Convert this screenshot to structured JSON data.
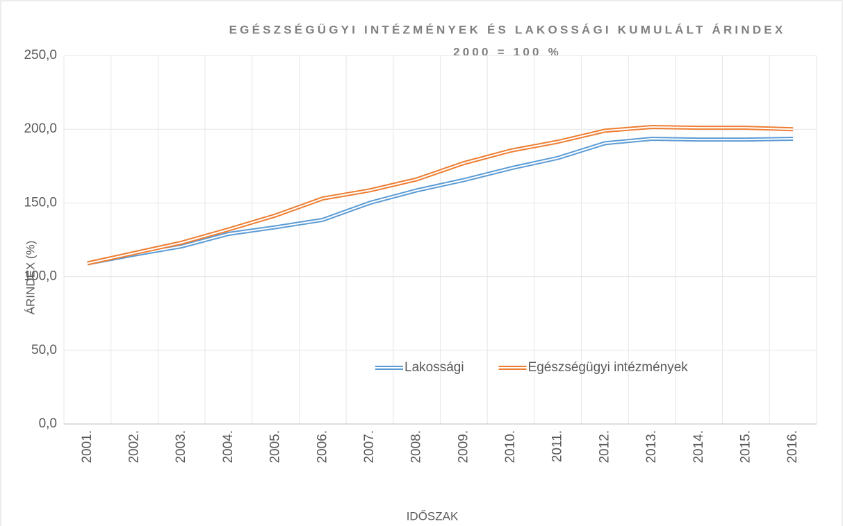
{
  "chart_data": {
    "type": "line",
    "title": "EGÉSZSÉGÜGYI INTÉZMÉNYEK ÉS LAKOSSÁGI KUMULÁLT ÁRINDEX",
    "subtitle": "2000 = 100 %",
    "x_label": "IDŐSZAK",
    "y_label": "ÁRINDEX (%)",
    "categories": [
      "2001.",
      "2002.",
      "2003.",
      "2004.",
      "2005.",
      "2006.",
      "2007.",
      "2008.",
      "2009.",
      "2010.",
      "2011.",
      "2012.",
      "2013.",
      "2014.",
      "2015.",
      "2016."
    ],
    "series": [
      {
        "name": "Lakossági",
        "color": "#5b9bd5",
        "values": [
          109,
          115,
          120.5,
          129,
          133.5,
          138.5,
          150,
          158.5,
          165.5,
          173.5,
          180.5,
          190.5,
          193.5,
          193,
          193,
          193.5
        ]
      },
      {
        "name": "Egészségügyi intézmények",
        "color": "#ed7d31",
        "values": [
          109,
          116,
          123,
          132,
          141.5,
          153,
          158.5,
          166,
          177,
          185.5,
          191.5,
          199,
          201.5,
          201,
          201,
          200
        ]
      }
    ],
    "ylim": [
      0,
      250
    ],
    "yticks": [
      {
        "value": 0,
        "label": "0,0"
      },
      {
        "value": 50,
        "label": "50,0"
      },
      {
        "value": 100,
        "label": "100,0"
      },
      {
        "value": 150,
        "label": "150,0"
      },
      {
        "value": 200,
        "label": "200,0"
      },
      {
        "value": 250,
        "label": "250,0"
      }
    ],
    "grid": true,
    "legend": "center"
  }
}
